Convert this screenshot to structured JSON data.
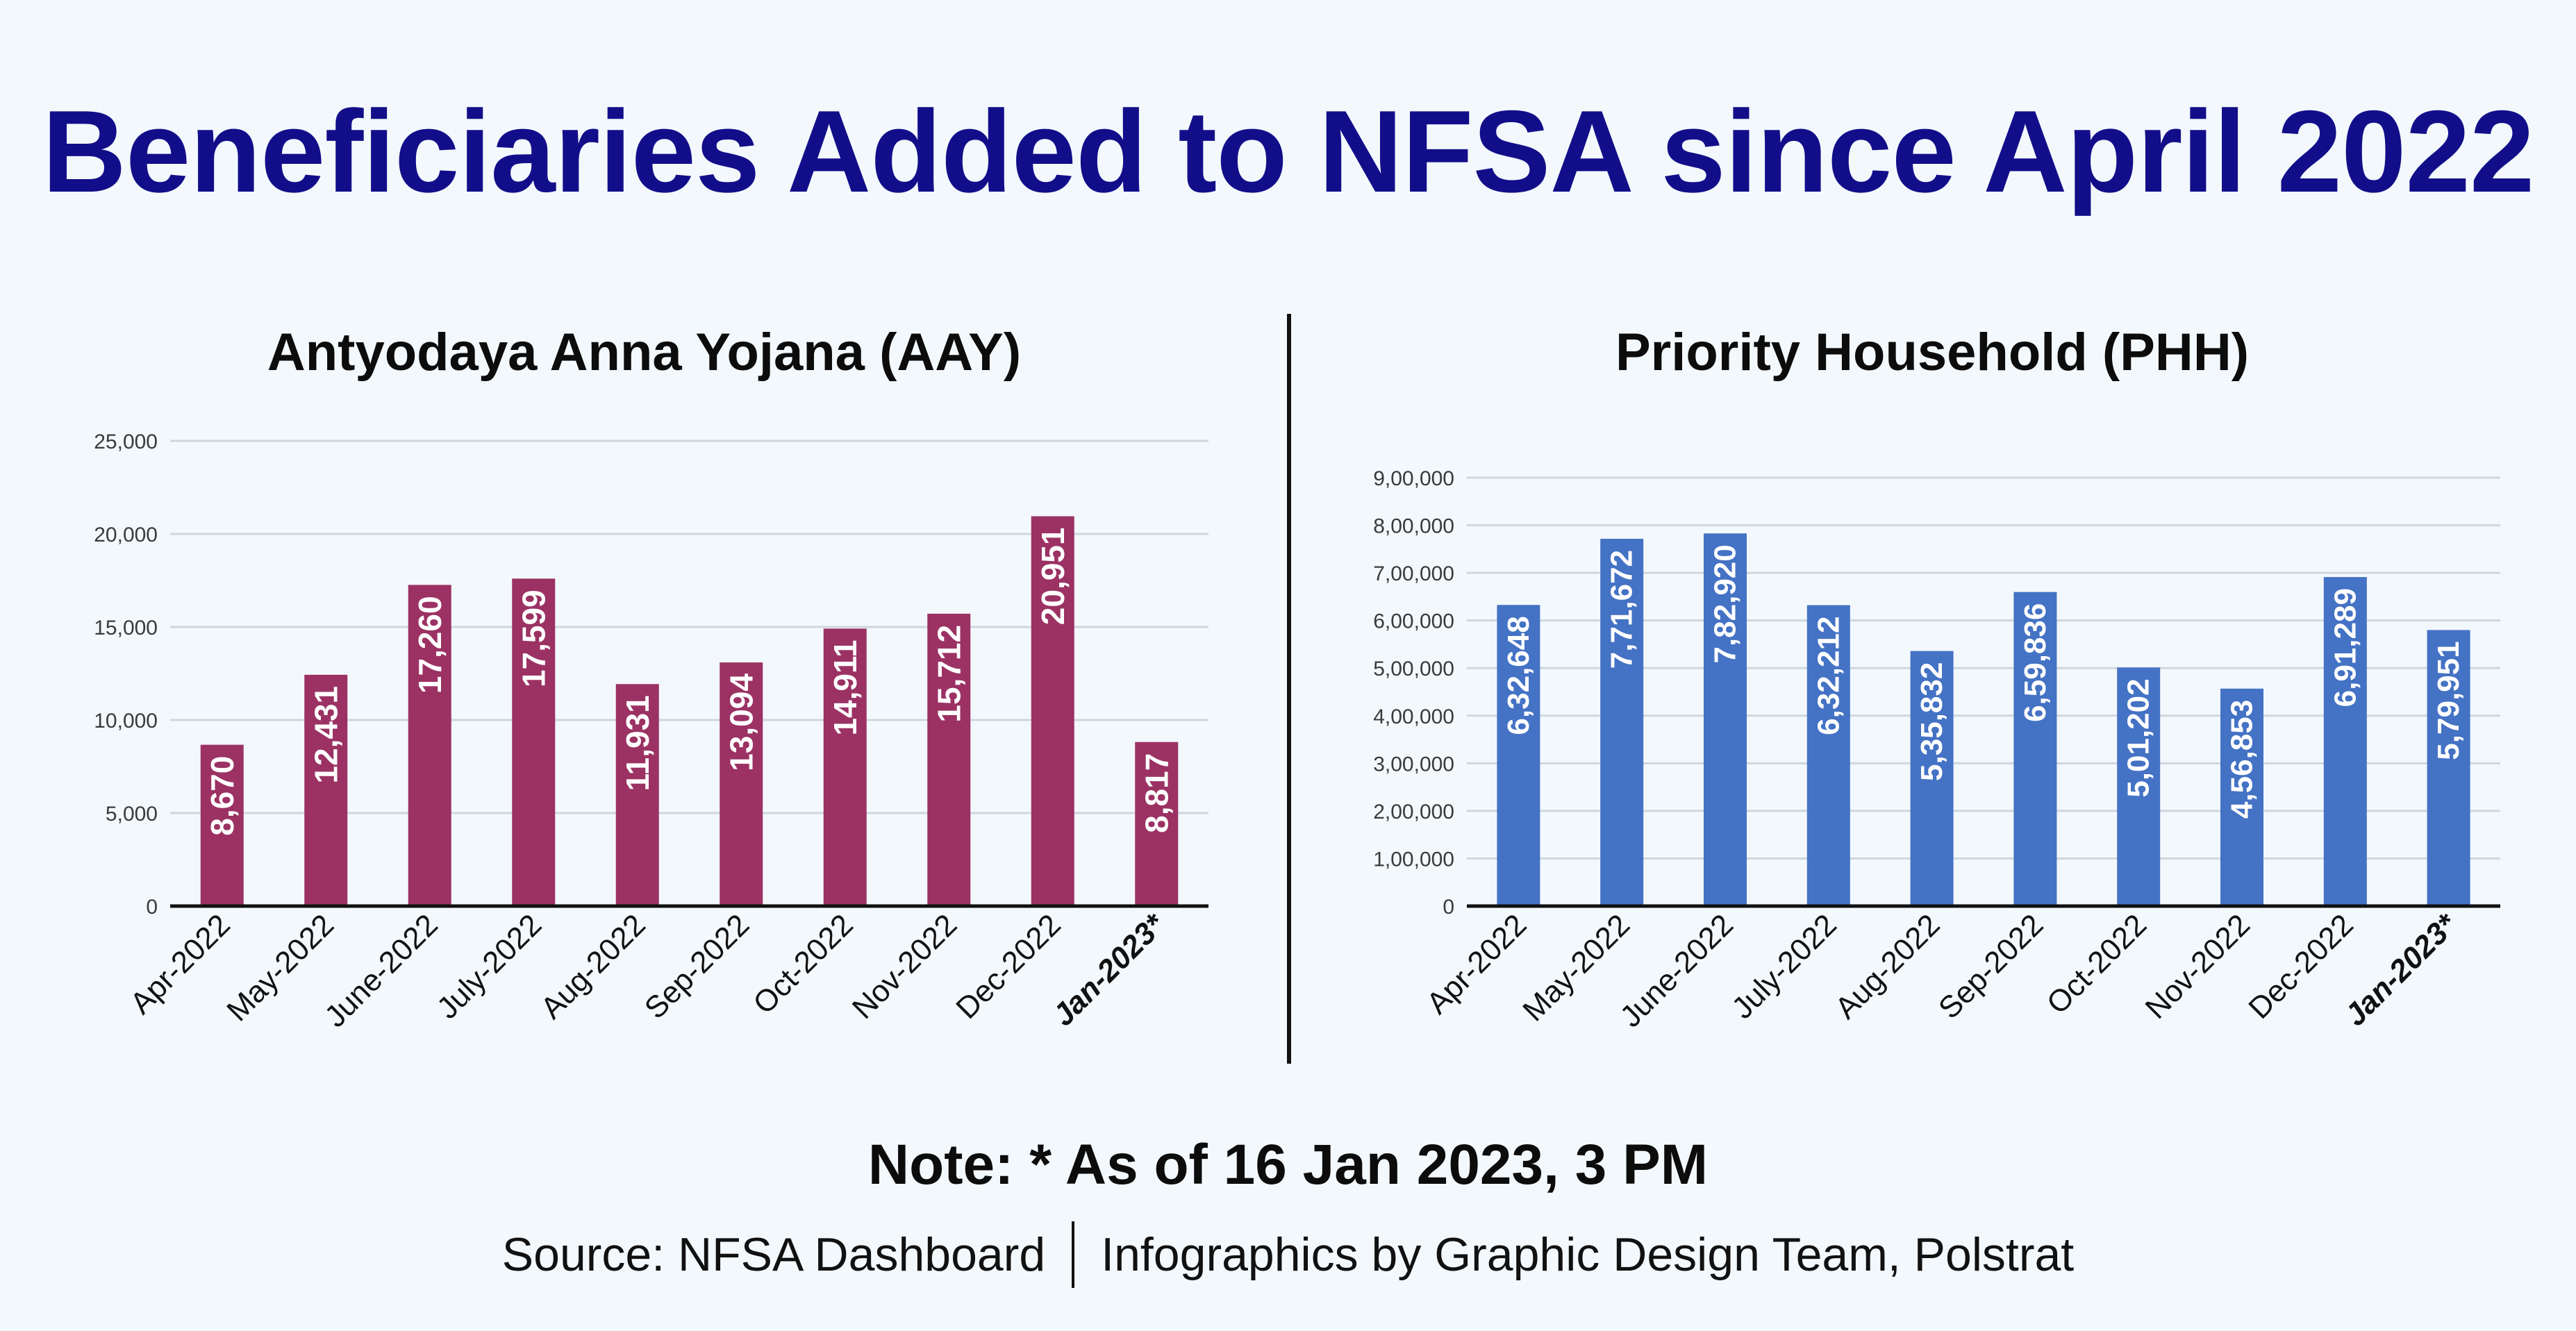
{
  "title": "Beneficiaries Added to NFSA since April 2022",
  "note": "Note: * As of 16 Jan 2023, 3 PM",
  "footer": {
    "source": "Source: NFSA Dashboard",
    "credit": "Infographics by Graphic Design Team, Polstrat"
  },
  "chart_data": [
    {
      "type": "bar",
      "title": "Antyodaya Anna Yojana (AAY)",
      "categories": [
        "Apr-2022",
        "May-2022",
        "June-2022",
        "July-2022",
        "Aug-2022",
        "Sep-2022",
        "Oct-2022",
        "Nov-2022",
        "Dec-2022",
        "Jan-2023*"
      ],
      "values": [
        8670,
        12431,
        17260,
        17599,
        11931,
        13094,
        14911,
        15712,
        20951,
        8817
      ],
      "value_labels": [
        "8,670",
        "12,431",
        "17,260",
        "17,599",
        "11,931",
        "13,094",
        "14,911",
        "15,712",
        "20,951",
        "8,817"
      ],
      "ylim": [
        0,
        25000
      ],
      "yticks": [
        0,
        5000,
        10000,
        15000,
        20000,
        25000
      ],
      "ytick_labels": [
        "0",
        "5,000",
        "10,000",
        "15,000",
        "20,000",
        "25,000"
      ],
      "bold_category": "Jan-2023*",
      "color": "#9b3263",
      "grid": true
    },
    {
      "type": "bar",
      "title": "Priority Household (PHH)",
      "categories": [
        "Apr-2022",
        "May-2022",
        "June-2022",
        "July-2022",
        "Aug-2022",
        "Sep-2022",
        "Oct-2022",
        "Nov-2022",
        "Dec-2022",
        "Jan-2023*"
      ],
      "values": [
        632648,
        771672,
        782920,
        632212,
        535832,
        659836,
        501202,
        456853,
        691289,
        579951
      ],
      "value_labels": [
        "6,32,648",
        "7,71,672",
        "7,82,920",
        "6,32,212",
        "5,35,832",
        "6,59,836",
        "5,01,202",
        "4,56,853",
        "6,91,289",
        "5,79,951"
      ],
      "ylim": [
        0,
        900000
      ],
      "yticks": [
        0,
        100000,
        200000,
        300000,
        400000,
        500000,
        600000,
        700000,
        800000,
        900000
      ],
      "ytick_labels": [
        "0",
        "1,00,000",
        "2,00,000",
        "3,00,000",
        "4,00,000",
        "5,00,000",
        "6,00,000",
        "7,00,000",
        "8,00,000",
        "9,00,000"
      ],
      "bold_category": "Jan-2023*",
      "color": "#4472c4",
      "grid": true
    }
  ]
}
